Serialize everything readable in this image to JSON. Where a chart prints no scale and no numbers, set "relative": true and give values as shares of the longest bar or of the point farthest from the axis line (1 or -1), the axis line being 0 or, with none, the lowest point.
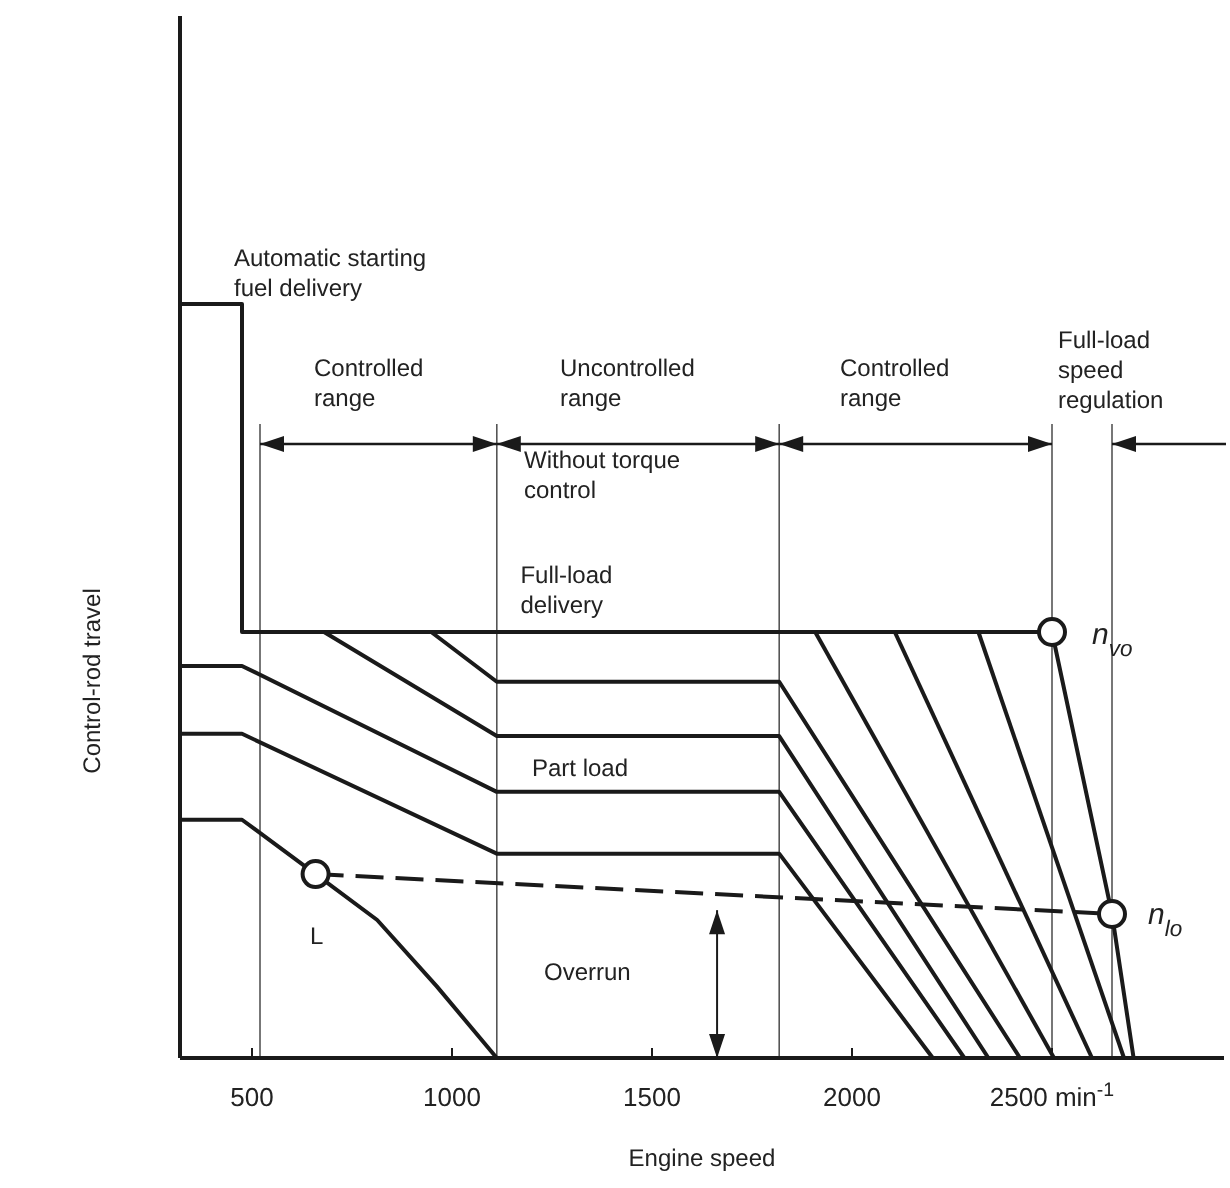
{
  "chart_data": {
    "type": "line",
    "relative": true,
    "xlabel": "Engine speed",
    "ylabel": "Control-rod travel",
    "xlim": [
      320,
      2930
    ],
    "xticks": [
      500,
      1000,
      1500,
      2000,
      {
        "value": 2500,
        "label": "2500 min$^{-1}$"
      }
    ],
    "series": [
      {
        "color": "#1a1a1a",
        "x": [
          320,
          475,
          475,
          2500,
          2650,
          2704
        ],
        "values": [
          1,
          1,
          0.565,
          0.565,
          0.191,
          0
        ]
      },
      {
        "color": "#1a1a1a",
        "x": [
          320,
          475,
          1112,
          1818,
          2281
        ],
        "values": [
          0.52,
          0.52,
          0.353,
          0.353,
          0
        ]
      },
      {
        "color": "#1a1a1a",
        "x": [
          320,
          475,
          1112,
          1818,
          2202
        ],
        "values": [
          0.43,
          0.43,
          0.271,
          0.271,
          0
        ]
      },
      {
        "color": "#1a1a1a",
        "x": [
          680,
          1112,
          1818,
          2341
        ],
        "values": [
          0.565,
          0.427,
          0.427,
          0
        ]
      },
      {
        "color": "#1a1a1a",
        "x": [
          948,
          1112,
          1818,
          2420
        ],
        "values": [
          0.565,
          0.499,
          0.499,
          0
        ]
      },
      {
        "color": "#1a1a1a",
        "x": [
          1908,
          2505
        ],
        "values": [
          0.565,
          0
        ]
      },
      {
        "color": "#1a1a1a",
        "x": [
          2107,
          2600
        ],
        "values": [
          0.565,
          0
        ]
      },
      {
        "color": "#1a1a1a",
        "x": [
          2316,
          2680
        ],
        "values": [
          0.565,
          0
        ]
      },
      {
        "color": "#1a1a1a",
        "x": [
          320,
          475,
          659,
          813,
          962,
          1112
        ],
        "values": [
          0.316,
          0.316,
          0.244,
          0.183,
          0.095,
          0
        ]
      },
      {
        "color": "#1a1a1a",
        "line_style": "dashed",
        "x": [
          659,
          2650
        ],
        "values": [
          0.244,
          0.191
        ]
      },
      {
        "type": "scatter",
        "marker": "circle",
        "color": "#1a1a1a",
        "x": [
          659,
          2500,
          2650
        ],
        "values": [
          0.244,
          0.565,
          0.191
        ]
      }
    ],
    "ref_lines": [
      {
        "axis": "x",
        "value": 520
      },
      {
        "axis": "x",
        "value": 1112
      },
      {
        "axis": "x",
        "value": 1818
      },
      {
        "axis": "x",
        "value": 2500
      },
      {
        "axis": "x",
        "value": 2650
      }
    ],
    "annotations": [
      {
        "text": "Automatic starting\nfuel delivery",
        "x": 455,
        "y": 1
      },
      "Controlled\nrange",
      "Uncontrolled\nrange",
      "Controlled\nrange",
      "Full-load\nspeed\nregulation",
      "Without torque\ncontrol",
      {
        "text": "Full-load\ndelivery",
        "x": 1171,
        "y": 0.58
      },
      "Part load",
      "Overrun",
      "L",
      "n$_{vo}$",
      "n$_{lo}$"
    ]
  }
}
